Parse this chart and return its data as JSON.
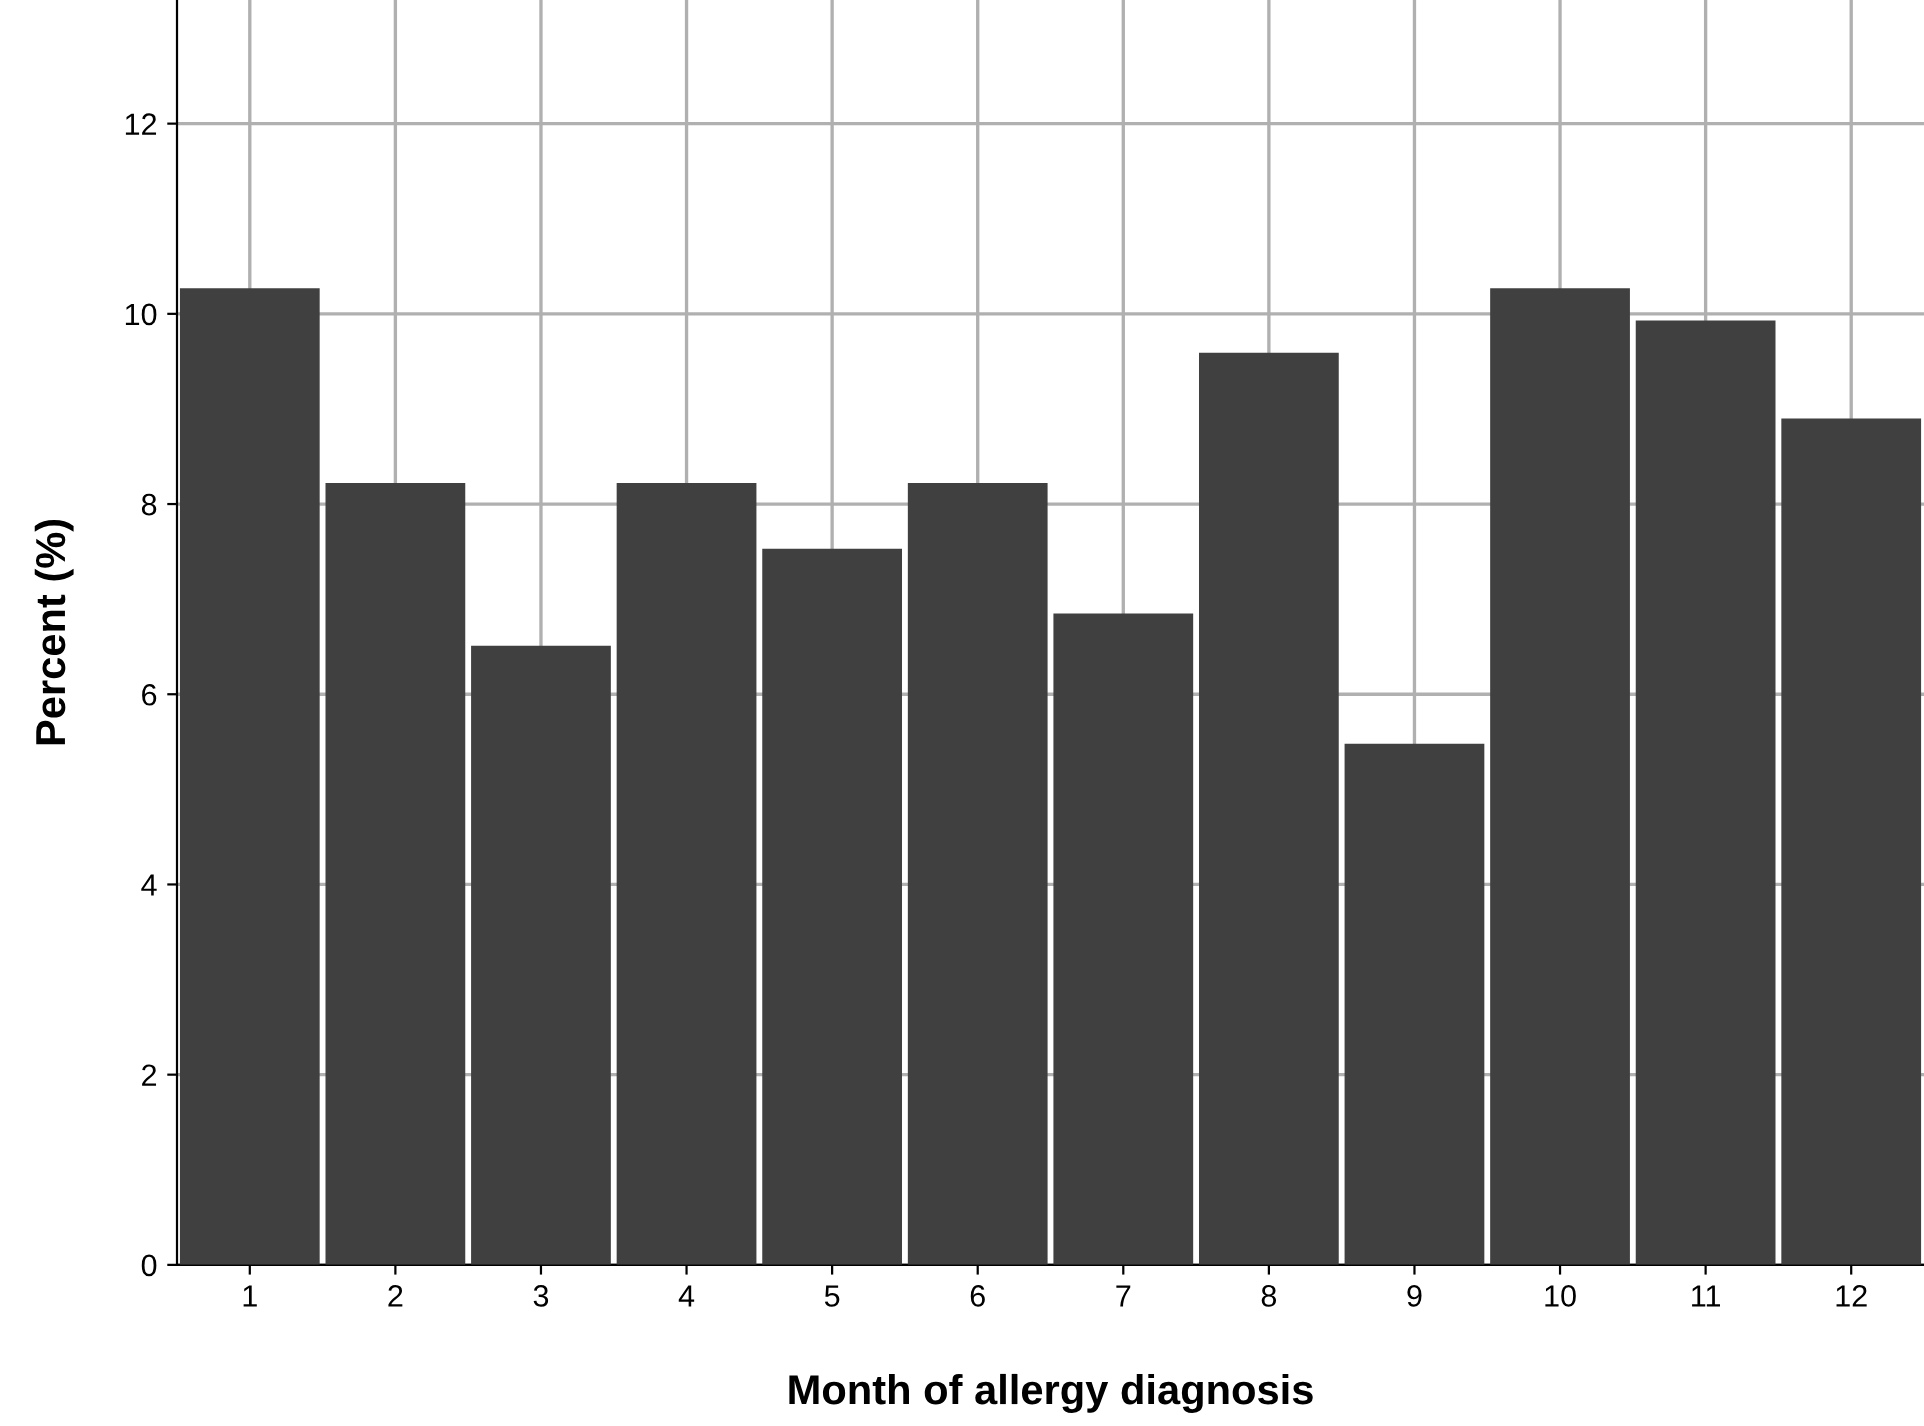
{
  "chart_data": {
    "type": "bar",
    "xlabel": "Month of allergy diagnosis",
    "ylabel": "Percent (%)",
    "categories": [
      "1",
      "2",
      "3",
      "4",
      "5",
      "6",
      "7",
      "8",
      "9",
      "10",
      "11",
      "12"
    ],
    "values": [
      10.27,
      8.22,
      6.51,
      8.22,
      7.53,
      8.22,
      6.85,
      9.59,
      5.48,
      10.27,
      9.93,
      8.9
    ],
    "color": "#404040",
    "ylim": [
      0,
      13.3
    ],
    "yticks": [
      0,
      2,
      4,
      6,
      8,
      10,
      12
    ],
    "grid": true
  }
}
